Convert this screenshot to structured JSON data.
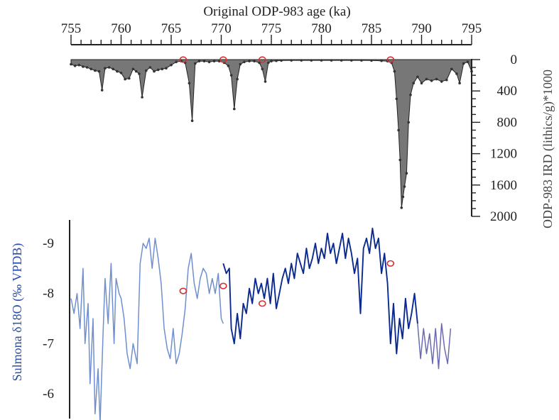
{
  "chart_data": [
    {
      "type": "area",
      "xlabel": "Original ODP-983 age (ka)",
      "ylabel": "ODP-983 IRD (lithics/g)*1000",
      "xlim": [
        755,
        795
      ],
      "ylim": [
        0,
        2000
      ],
      "y_inverted": true,
      "x_ticks": [
        "755",
        "760",
        "765",
        "770",
        "775",
        "780",
        "785",
        "790",
        "795"
      ],
      "y_ticks": [
        "0",
        "400",
        "800",
        "1200",
        "1600",
        "2000"
      ],
      "colors": {
        "fill": "#777777",
        "line": "#222222",
        "marker": "#333333"
      },
      "x": [
        755.0,
        755.4,
        755.8,
        756.2,
        756.6,
        757.0,
        757.4,
        757.8,
        758.1,
        758.4,
        758.8,
        759.2,
        759.6,
        760.0,
        760.4,
        760.8,
        761.2,
        761.5,
        761.8,
        762.1,
        762.5,
        762.9,
        763.3,
        763.7,
        764.1,
        764.5,
        765.0,
        765.5,
        766.0,
        766.4,
        766.8,
        767.1,
        767.4,
        767.8,
        768.3,
        768.8,
        769.3,
        769.8,
        770.3,
        770.7,
        771.0,
        771.3,
        771.6,
        771.9,
        772.3,
        772.8,
        773.3,
        773.8,
        774.1,
        774.4,
        774.7,
        775.0,
        775.5,
        776.0,
        777.0,
        778.0,
        779.0,
        780.0,
        781.0,
        782.0,
        783.0,
        784.0,
        785.0,
        786.0,
        786.6,
        787.0,
        787.3,
        787.5,
        787.7,
        787.85,
        788.0,
        788.15,
        788.3,
        788.5,
        788.7,
        788.9,
        789.2,
        789.6,
        790.0,
        790.5,
        791.0,
        791.5,
        792.0,
        792.5,
        793.0,
        793.5,
        793.8,
        794.2,
        794.6,
        795.0
      ],
      "y": [
        60,
        80,
        70,
        90,
        100,
        120,
        140,
        150,
        390,
        110,
        100,
        120,
        150,
        170,
        250,
        240,
        120,
        150,
        180,
        480,
        140,
        100,
        150,
        130,
        120,
        110,
        70,
        30,
        20,
        40,
        300,
        780,
        50,
        20,
        20,
        30,
        20,
        20,
        40,
        80,
        200,
        630,
        250,
        60,
        30,
        20,
        20,
        40,
        120,
        280,
        40,
        20,
        15,
        12,
        10,
        10,
        10,
        10,
        10,
        10,
        10,
        10,
        12,
        15,
        20,
        40,
        150,
        500,
        900,
        1280,
        1890,
        1750,
        1620,
        1450,
        800,
        450,
        300,
        220,
        300,
        250,
        270,
        250,
        280,
        260,
        120,
        180,
        300,
        50,
        30,
        150
      ]
    },
    {
      "type": "line",
      "ylabel": "Sulmona δ18O (‰ VPDB)",
      "xlim": [
        755,
        795
      ],
      "ylim": [
        -5.5,
        -9.5
      ],
      "y_inverted": true,
      "y_ticks": [
        "-9",
        "-8",
        "-7",
        "-6"
      ],
      "colors": {
        "light": "#6f8fcf",
        "dark": "#0a2a8f",
        "late": "#6b6bb0",
        "tie_points": "#d63030"
      },
      "series": [
        {
          "x": [
            755.0,
            755.3,
            755.6,
            755.9,
            756.2,
            756.4,
            756.7,
            756.9,
            757.2,
            757.4,
            757.7,
            757.9,
            758.2,
            758.4,
            758.7,
            759.0,
            759.3,
            759.5,
            759.8,
            760.0,
            760.3,
            760.6,
            760.9,
            761.2,
            761.6,
            761.9,
            762.2,
            762.5,
            762.8,
            763.1,
            763.4,
            763.7,
            764.0,
            764.3,
            764.6,
            764.9,
            765.2,
            765.5,
            765.8,
            766.1,
            766.4,
            766.7,
            767.0,
            767.3,
            767.6,
            767.9,
            768.2,
            768.5,
            768.8,
            769.1,
            769.4,
            769.7,
            770.0,
            770.2
          ],
          "y": [
            -7.9,
            -7.6,
            -8.0,
            -7.3,
            -8.5,
            -7.0,
            -7.8,
            -6.2,
            -7.5,
            -5.6,
            -6.5,
            -5.4,
            -7.2,
            -8.3,
            -7.4,
            -8.6,
            -7.0,
            -8.3,
            -8.0,
            -7.9,
            -7.5,
            -6.8,
            -6.5,
            -7.0,
            -6.6,
            -8.6,
            -9.0,
            -8.9,
            -9.1,
            -8.5,
            -9.1,
            -8.7,
            -8.2,
            -7.3,
            -6.9,
            -6.7,
            -7.3,
            -6.6,
            -6.8,
            -7.2,
            -7.7,
            -8.5,
            -8.8,
            -8.2,
            -7.9,
            -8.3,
            -8.5,
            -8.4,
            -8.0,
            -8.3,
            -8.0,
            -8.4,
            -7.5,
            -7.4
          ]
        },
        {
          "x": [
            770.2,
            770.5,
            770.8,
            771.0,
            771.3,
            771.6,
            771.9,
            772.2,
            772.5,
            772.8,
            773.1,
            773.4,
            773.7,
            774.0,
            774.3,
            774.6,
            774.9,
            775.2,
            775.5,
            775.8,
            776.1,
            776.4,
            776.7,
            777.0,
            777.3,
            777.6,
            777.9,
            778.2,
            778.5,
            778.8,
            779.1,
            779.4,
            779.7,
            780.0,
            780.3,
            780.6,
            780.9,
            781.2,
            781.5,
            781.8,
            782.1,
            782.4,
            782.7,
            783.0,
            783.3,
            783.6,
            783.9,
            784.2,
            784.5,
            784.8,
            785.1,
            785.4,
            785.7,
            786.0,
            786.3,
            786.6,
            786.9,
            787.2,
            787.5,
            787.8,
            788.1,
            788.4,
            788.7,
            789.0,
            789.3,
            789.6
          ],
          "y": [
            -8.6,
            -8.4,
            -8.5,
            -7.3,
            -7.0,
            -7.6,
            -7.1,
            -7.8,
            -7.6,
            -8.1,
            -7.8,
            -8.3,
            -8.0,
            -8.2,
            -7.9,
            -8.3,
            -7.8,
            -8.4,
            -7.7,
            -8.0,
            -8.3,
            -8.5,
            -8.2,
            -8.6,
            -8.3,
            -8.8,
            -8.6,
            -8.4,
            -8.9,
            -8.5,
            -8.7,
            -9.0,
            -8.6,
            -8.9,
            -8.7,
            -9.2,
            -8.8,
            -9.0,
            -8.6,
            -8.9,
            -9.2,
            -8.7,
            -9.1,
            -8.8,
            -8.4,
            -8.7,
            -7.6,
            -8.9,
            -9.1,
            -8.8,
            -9.3,
            -8.9,
            -9.1,
            -8.4,
            -8.8,
            -8.2,
            -7.0,
            -7.8,
            -6.8,
            -7.5,
            -7.1,
            -7.9,
            -7.3,
            -7.6,
            -8.0,
            -7.4
          ]
        },
        {
          "x": [
            789.6,
            789.9,
            790.2,
            790.5,
            790.8,
            791.1,
            791.4,
            791.7,
            792.0,
            792.3,
            792.6,
            792.9
          ],
          "y": [
            -7.4,
            -6.7,
            -7.3,
            -6.8,
            -7.2,
            -6.6,
            -7.3,
            -6.5,
            -7.4,
            -6.9,
            -6.6,
            -7.3
          ]
        }
      ],
      "tie_points": [
        {
          "x": 766.2,
          "ira": 0,
          "o18": -8.05
        },
        {
          "x": 770.2,
          "ira": 0,
          "o18": -8.15
        },
        {
          "x": 774.1,
          "ira": 0,
          "o18": -7.8
        },
        {
          "x": 786.9,
          "ira": 0,
          "o18": -8.6
        }
      ]
    }
  ]
}
